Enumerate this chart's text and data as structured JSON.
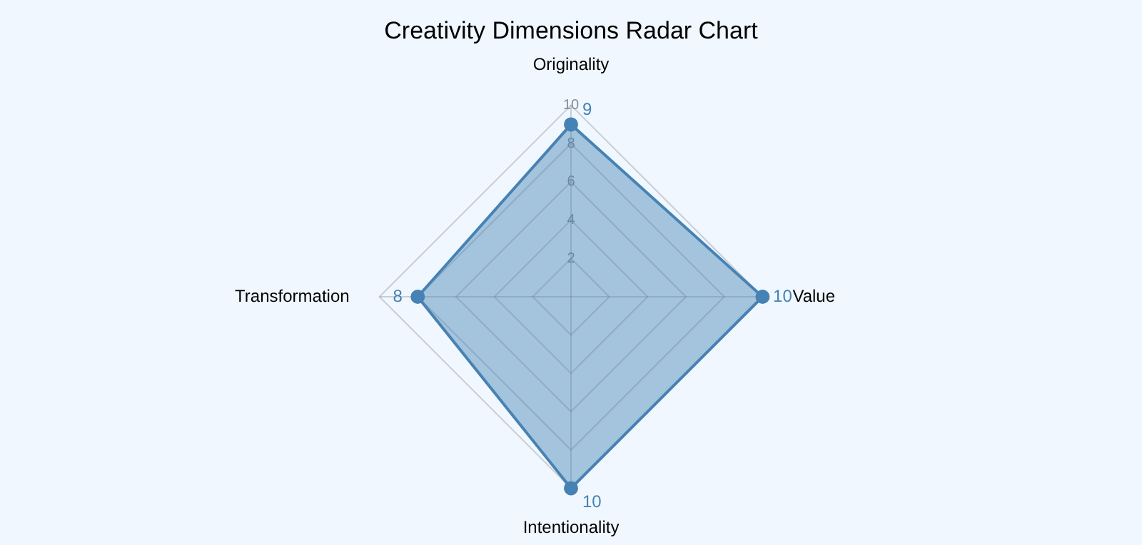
{
  "chart_data": {
    "type": "radar",
    "title": "Creativity Dimensions Radar Chart",
    "categories": [
      "Originality",
      "Value",
      "Intentionality",
      "Transformation"
    ],
    "series": [
      {
        "color": "#4682b4",
        "values": [
          9,
          10,
          10,
          8
        ]
      }
    ],
    "ylim": [
      0,
      10
    ],
    "yticks": [
      2,
      4,
      6,
      8,
      10
    ],
    "grid": true,
    "legend": false,
    "marker": "circle",
    "data_labels": true
  }
}
